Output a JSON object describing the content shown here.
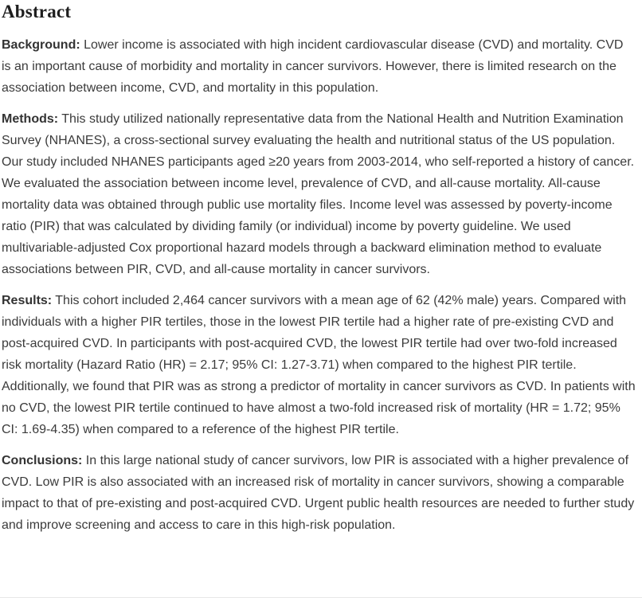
{
  "abstract": {
    "title": "Abstract",
    "paragraphs": [
      {
        "label": "Background:",
        "text": "Lower income is associated with high incident cardiovascular disease (CVD) and mortality. CVD is an important cause of morbidity and mortality in cancer survivors. However, there is limited research on the association between income, CVD, and mortality in this population."
      },
      {
        "label": "Methods:",
        "text": "This study utilized nationally representative data from the National Health and Nutrition Examination Survey (NHANES), a cross-sectional survey evaluating the health and nutritional status of the US population. Our study included NHANES participants aged ≥20 years from 2003-2014, who self-reported a history of cancer. We evaluated the association between income level, prevalence of CVD, and all-cause mortality. All-cause mortality data was obtained through public use mortality files. Income level was assessed by poverty-income ratio (PIR) that was calculated by dividing family (or individual) income by poverty guideline. We used multivariable-adjusted Cox proportional hazard models through a backward elimination method to evaluate associations between PIR, CVD, and all-cause mortality in cancer survivors."
      },
      {
        "label": "Results:",
        "text": "This cohort included 2,464 cancer survivors with a mean age of 62 (42% male) years. Compared with individuals with a higher PIR tertiles, those in the lowest PIR tertile had a higher rate of pre-existing CVD and post-acquired CVD. In participants with post-acquired CVD, the lowest PIR tertile had over two-fold increased risk mortality (Hazard Ratio (HR) = 2.17; 95% CI: 1.27-3.71) when compared to the highest PIR tertile. Additionally, we found that PIR was as strong a predictor of mortality in cancer survivors as CVD. In patients with no CVD, the lowest PIR tertile continued to have almost a two-fold increased risk of mortality (HR = 1.72; 95% CI: 1.69-4.35) when compared to a reference of the highest PIR tertile."
      },
      {
        "label": "Conclusions:",
        "text": "In this large national study of cancer survivors, low PIR is associated with a higher prevalence of CVD. Low PIR is also associated with an increased risk of mortality in cancer survivors, showing a comparable impact to that of pre-existing and post-acquired CVD. Urgent public health resources are needed to further study and improve screening and access to care in this high-risk population."
      }
    ]
  },
  "colors": {
    "heading": "#1e1e1e",
    "body": "#3b3b3b",
    "label": "#333333",
    "divider": "#e8e8e8",
    "background": "#ffffff"
  }
}
